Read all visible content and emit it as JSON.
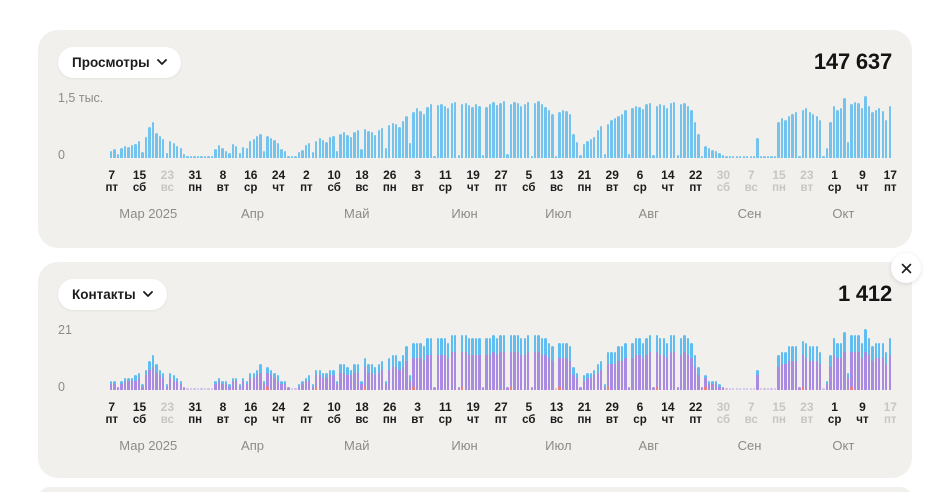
{
  "panels": [
    {
      "metric_label": "Просмотры",
      "total": "147 637",
      "y_max_label": "1,5 тыс.",
      "y_min_label": "0"
    },
    {
      "metric_label": "Контакты",
      "total": "1 412",
      "y_max_label": "21",
      "y_min_label": "0"
    }
  ],
  "icons": {
    "dropdown_chevron": "chevron-down",
    "close": "x"
  },
  "colors": {
    "panel_bg": "#f2f0ed",
    "views_bar": "#74c3ee",
    "contacts_purple": "#a98ce2",
    "contacts_blue": "#5fbdf2",
    "contacts_red": "#ee7f72",
    "muted_tick": "#c9c6c1",
    "axis_gray": "#8e8b85"
  },
  "chart_data": [
    {
      "type": "bar",
      "title": "Просмотры",
      "total": 147637,
      "ylim": [
        0,
        1600
      ],
      "y_tick_labels": [
        "0",
        "1,5 тыс."
      ],
      "bar_color": "#74c3ee",
      "zero_dot_color": "#b3dcf5",
      "values": [
        180,
        220,
        90,
        260,
        310,
        280,
        330,
        360,
        420,
        150,
        520,
        780,
        900,
        620,
        560,
        480,
        130,
        420,
        380,
        300,
        260,
        90,
        40,
        20,
        30,
        25,
        35,
        30,
        25,
        40,
        220,
        320,
        260,
        180,
        120,
        340,
        300,
        120,
        280,
        240,
        420,
        480,
        560,
        610,
        180,
        540,
        500,
        460,
        380,
        220,
        180,
        60,
        40,
        35,
        150,
        210,
        330,
        380,
        140,
        420,
        500,
        460,
        390,
        520,
        560,
        180,
        610,
        640,
        580,
        520,
        660,
        700,
        230,
        720,
        680,
        640,
        580,
        700,
        760,
        250,
        820,
        880,
        840,
        780,
        920,
        1050,
        380,
        1150,
        1250,
        1180,
        1100,
        1280,
        1350,
        60,
        1320,
        1360,
        1300,
        1240,
        1380,
        1400,
        80,
        1350,
        1380,
        1330,
        1280,
        1360,
        1300,
        70,
        1280,
        1350,
        1400,
        1320,
        1380,
        1420,
        90,
        1350,
        1400,
        1380,
        1300,
        1360,
        1400,
        60,
        1380,
        1420,
        1350,
        1280,
        1200,
        1100,
        50,
        1150,
        1200,
        1180,
        1100,
        600,
        400,
        80,
        350,
        420,
        480,
        520,
        700,
        800,
        100,
        850,
        950,
        1000,
        1050,
        1100,
        1200,
        90,
        1250,
        1300,
        1280,
        1220,
        1350,
        1380,
        70,
        1300,
        1350,
        1320,
        1250,
        1380,
        1400,
        80,
        1350,
        1380,
        1300,
        1200,
        900,
        600,
        60,
        300,
        250,
        200,
        180,
        120,
        80,
        20,
        30,
        25,
        20,
        30,
        25,
        20,
        15,
        20,
        500,
        30,
        25,
        20,
        25,
        15,
        900,
        1000,
        950,
        1050,
        1100,
        1150,
        60,
        1200,
        1250,
        1150,
        1100,
        1050,
        950,
        50,
        250,
        900,
        1300,
        1200,
        1250,
        1500,
        400,
        1350,
        1400,
        1380,
        1250,
        1550,
        1300,
        1150,
        1200,
        1250,
        1180,
        950,
        1300
      ],
      "x_axis": {
        "tick_every_days": 8,
        "ticks": [
          {
            "d": "7",
            "w": "пт"
          },
          {
            "d": "15",
            "w": "сб"
          },
          {
            "d": "23",
            "w": "вс"
          },
          {
            "d": "31",
            "w": "пн"
          },
          {
            "d": "8",
            "w": "вт"
          },
          {
            "d": "16",
            "w": "ср"
          },
          {
            "d": "24",
            "w": "чт"
          },
          {
            "d": "2",
            "w": "пт"
          },
          {
            "d": "10",
            "w": "сб"
          },
          {
            "d": "18",
            "w": "вс"
          },
          {
            "d": "26",
            "w": "пн"
          },
          {
            "d": "3",
            "w": "вт"
          },
          {
            "d": "11",
            "w": "ср"
          },
          {
            "d": "19",
            "w": "чт"
          },
          {
            "d": "27",
            "w": "пт"
          },
          {
            "d": "5",
            "w": "сб"
          },
          {
            "d": "13",
            "w": "вс"
          },
          {
            "d": "21",
            "w": "пн"
          },
          {
            "d": "29",
            "w": "вт"
          },
          {
            "d": "6",
            "w": "ср"
          },
          {
            "d": "14",
            "w": "чт"
          },
          {
            "d": "22",
            "w": "пт"
          },
          {
            "d": "30",
            "w": "сб"
          },
          {
            "d": "7",
            "w": "вс"
          },
          {
            "d": "15",
            "w": "пн"
          },
          {
            "d": "23",
            "w": "вт"
          },
          {
            "d": "1",
            "w": "ср"
          },
          {
            "d": "9",
            "w": "чт"
          },
          {
            "d": "17",
            "w": "пт"
          }
        ],
        "muted_ticks": [
          2,
          22,
          23,
          24,
          25
        ],
        "months": [
          {
            "label": "Мар 2025",
            "day": 11
          },
          {
            "label": "Апр",
            "day": 41
          },
          {
            "label": "Май",
            "day": 71
          },
          {
            "label": "Июн",
            "day": 102
          },
          {
            "label": "Июл",
            "day": 129
          },
          {
            "label": "Авг",
            "day": 155
          },
          {
            "label": "Сен",
            "day": 184
          },
          {
            "label": "Окт",
            "day": 211
          }
        ]
      }
    },
    {
      "type": "bar",
      "stacked": true,
      "title": "Контакты",
      "total": 1412,
      "ylim": [
        0,
        22
      ],
      "y_tick_labels": [
        "0",
        "21"
      ],
      "zero_dot_color": "#cdbcee",
      "series": [
        {
          "name": "contacts-purple",
          "color": "#a98ce2",
          "values": [
            2,
            2,
            1,
            2,
            3,
            3,
            3,
            3,
            4,
            1,
            5,
            7,
            8,
            6,
            5,
            4,
            1,
            4,
            3,
            3,
            2,
            1,
            0,
            0,
            0,
            0,
            0,
            0,
            0,
            0,
            2,
            3,
            2,
            2,
            1,
            3,
            3,
            1,
            3,
            2,
            4,
            4,
            5,
            6,
            2,
            5,
            5,
            4,
            3,
            2,
            2,
            1,
            0,
            0,
            1,
            2,
            3,
            3,
            1,
            4,
            5,
            4,
            4,
            5,
            5,
            2,
            6,
            6,
            5,
            5,
            6,
            6,
            2,
            7,
            6,
            6,
            5,
            6,
            7,
            2,
            7,
            8,
            8,
            7,
            8,
            10,
            3,
            10,
            11,
            11,
            10,
            12,
            12,
            1,
            12,
            12,
            12,
            11,
            13,
            13,
            1,
            12,
            13,
            12,
            12,
            12,
            12,
            1,
            12,
            12,
            13,
            12,
            13,
            13,
            1,
            12,
            13,
            13,
            12,
            12,
            13,
            1,
            13,
            13,
            12,
            12,
            11,
            10,
            0,
            10,
            11,
            11,
            10,
            5,
            4,
            1,
            3,
            4,
            4,
            5,
            6,
            7,
            1,
            8,
            9,
            9,
            10,
            10,
            11,
            1,
            11,
            12,
            12,
            11,
            12,
            13,
            1,
            12,
            12,
            12,
            11,
            13,
            13,
            1,
            12,
            13,
            12,
            11,
            8,
            5,
            1,
            3,
            2,
            2,
            2,
            1,
            1,
            0,
            0,
            0,
            0,
            0,
            0,
            0,
            0,
            0,
            5,
            0,
            0,
            0,
            0,
            0,
            8,
            9,
            9,
            10,
            10,
            10,
            1,
            11,
            11,
            10,
            10,
            10,
            9,
            0,
            2,
            8,
            12,
            11,
            11,
            13,
            4,
            12,
            13,
            13,
            11,
            13,
            12,
            10,
            11,
            11,
            11,
            9,
            12
          ]
        },
        {
          "name": "contacts-blue",
          "color": "#5fbdf2",
          "values": [
            1,
            1,
            0,
            1,
            1,
            1,
            1,
            2,
            2,
            1,
            2,
            3,
            4,
            3,
            2,
            2,
            1,
            2,
            2,
            1,
            1,
            0,
            0,
            0,
            0,
            0,
            0,
            0,
            0,
            0,
            1,
            1,
            1,
            1,
            1,
            1,
            1,
            1,
            1,
            1,
            2,
            2,
            2,
            3,
            1,
            2,
            2,
            2,
            2,
            1,
            1,
            0,
            0,
            0,
            1,
            1,
            1,
            2,
            1,
            2,
            2,
            2,
            2,
            2,
            2,
            1,
            3,
            3,
            3,
            2,
            3,
            3,
            1,
            3,
            3,
            3,
            3,
            3,
            3,
            1,
            4,
            4,
            4,
            3,
            4,
            5,
            2,
            5,
            5,
            5,
            5,
            6,
            6,
            0,
            6,
            6,
            6,
            5,
            6,
            6,
            0,
            6,
            6,
            6,
            6,
            6,
            6,
            0,
            6,
            6,
            6,
            6,
            6,
            6,
            0,
            6,
            6,
            6,
            6,
            6,
            6,
            0,
            6,
            6,
            6,
            6,
            5,
            5,
            0,
            5,
            5,
            5,
            5,
            3,
            2,
            0,
            2,
            2,
            2,
            2,
            3,
            3,
            1,
            4,
            4,
            4,
            5,
            5,
            5,
            0,
            5,
            6,
            6,
            5,
            6,
            6,
            0,
            6,
            6,
            6,
            5,
            6,
            6,
            0,
            6,
            6,
            6,
            5,
            4,
            3,
            0,
            1,
            1,
            1,
            1,
            1,
            0,
            0,
            0,
            0,
            0,
            0,
            0,
            0,
            0,
            0,
            2,
            0,
            0,
            0,
            0,
            0,
            4,
            4,
            4,
            5,
            5,
            5,
            0,
            5,
            5,
            5,
            5,
            5,
            4,
            0,
            1,
            4,
            6,
            5,
            5,
            7,
            2,
            6,
            6,
            6,
            5,
            8,
            6,
            5,
            5,
            5,
            5,
            4,
            6
          ]
        },
        {
          "name": "contacts-red",
          "color": "#ee7f72",
          "value_per_day": 1,
          "days": [
            45,
            59,
            73,
            87,
            101,
            115,
            129,
            143,
            157,
            171,
            199,
            213
          ]
        }
      ],
      "x_axis": {
        "tick_every_days": 8,
        "ticks": [
          {
            "d": "7",
            "w": "пт"
          },
          {
            "d": "15",
            "w": "сб"
          },
          {
            "d": "23",
            "w": "вс"
          },
          {
            "d": "31",
            "w": "пн"
          },
          {
            "d": "8",
            "w": "вт"
          },
          {
            "d": "16",
            "w": "ср"
          },
          {
            "d": "24",
            "w": "чт"
          },
          {
            "d": "2",
            "w": "пт"
          },
          {
            "d": "10",
            "w": "сб"
          },
          {
            "d": "18",
            "w": "вс"
          },
          {
            "d": "26",
            "w": "пн"
          },
          {
            "d": "3",
            "w": "вт"
          },
          {
            "d": "11",
            "w": "ср"
          },
          {
            "d": "19",
            "w": "чт"
          },
          {
            "d": "27",
            "w": "пт"
          },
          {
            "d": "5",
            "w": "сб"
          },
          {
            "d": "13",
            "w": "вс"
          },
          {
            "d": "21",
            "w": "пн"
          },
          {
            "d": "29",
            "w": "вт"
          },
          {
            "d": "6",
            "w": "ср"
          },
          {
            "d": "14",
            "w": "чт"
          },
          {
            "d": "22",
            "w": "пт"
          },
          {
            "d": "30",
            "w": "сб"
          },
          {
            "d": "7",
            "w": "вс"
          },
          {
            "d": "15",
            "w": "пн"
          },
          {
            "d": "23",
            "w": "вт"
          },
          {
            "d": "1",
            "w": "ср"
          },
          {
            "d": "9",
            "w": "чт"
          },
          {
            "d": "17",
            "w": "пт"
          }
        ],
        "muted_ticks": [
          2,
          22,
          23,
          24,
          25,
          28
        ],
        "months": [
          {
            "label": "Мар 2025",
            "day": 11
          },
          {
            "label": "Апр",
            "day": 41
          },
          {
            "label": "Май",
            "day": 71
          },
          {
            "label": "Июн",
            "day": 102
          },
          {
            "label": "Июл",
            "day": 129
          },
          {
            "label": "Авг",
            "day": 155
          },
          {
            "label": "Сен",
            "day": 184
          },
          {
            "label": "Окт",
            "day": 211
          }
        ]
      }
    }
  ]
}
